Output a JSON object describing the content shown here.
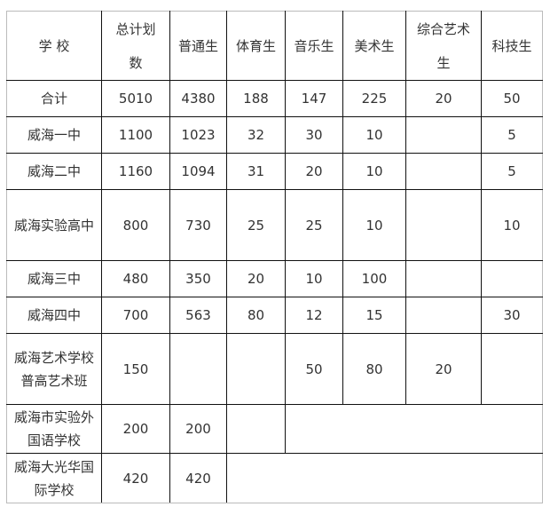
{
  "headers": [
    "学 校",
    "总计划数",
    "普通生",
    "体育生",
    "音乐生",
    "美术生",
    "综合艺术生",
    "科技生"
  ],
  "rows": [
    {
      "school": "合计",
      "total": "5010",
      "regular": "4380",
      "sports": "188",
      "music": "147",
      "art": "225",
      "comprehensive": "20",
      "tech": "50"
    },
    {
      "school": "威海一中",
      "total": "1100",
      "regular": "1023",
      "sports": "32",
      "music": "30",
      "art": "10",
      "comprehensive": "",
      "tech": "5"
    },
    {
      "school": "威海二中",
      "total": "1160",
      "regular": "1094",
      "sports": "31",
      "music": "20",
      "art": "10",
      "comprehensive": "",
      "tech": "5"
    },
    {
      "school": "威海实验高中",
      "total": "800",
      "regular": "730",
      "sports": "25",
      "music": "25",
      "art": "10",
      "comprehensive": "",
      "tech": "10"
    },
    {
      "school": "威海三中",
      "total": "480",
      "regular": "350",
      "sports": "20",
      "music": "10",
      "art": "100",
      "comprehensive": "",
      "tech": ""
    },
    {
      "school": "威海四中",
      "total": "700",
      "regular": "563",
      "sports": "80",
      "music": "12",
      "art": "15",
      "comprehensive": "",
      "tech": "30"
    },
    {
      "school": "威海艺术学校普高艺术班",
      "total": "150",
      "regular": "",
      "sports": "",
      "music": "50",
      "art": "80",
      "comprehensive": "20",
      "tech": ""
    },
    {
      "school": "威海市实验外国语学校",
      "total": "200",
      "regular": "200"
    },
    {
      "school": "威海大光华国际学校",
      "total": "420",
      "regular": "420"
    }
  ]
}
